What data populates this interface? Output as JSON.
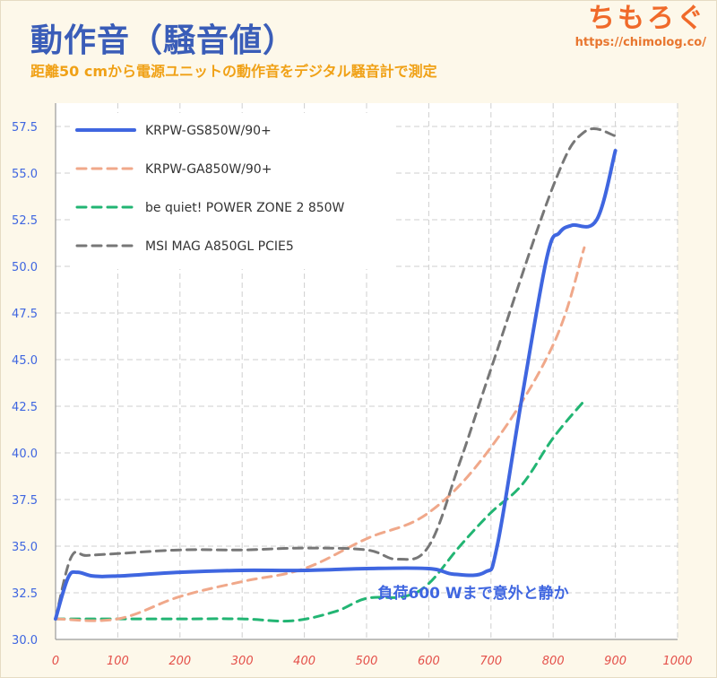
{
  "header": {
    "title": "動作音（騒音値）",
    "subtitle": "距離50 cmから電源ユニットの動作音をデジタル騒音計で測定"
  },
  "brand": {
    "name": "ちもろぐ",
    "url": "https://chimolog.co/"
  },
  "chart_data": {
    "type": "line",
    "title": "動作音（騒音値）",
    "subtitle": "距離50 cmから電源ユニットの動作音をデジタル騒音計で測定",
    "xlabel": "",
    "ylabel": "",
    "xlim": [
      0,
      1000
    ],
    "ylim": [
      30.0,
      58.75
    ],
    "x_ticks": [
      0,
      100,
      200,
      300,
      400,
      500,
      600,
      700,
      800,
      900,
      1000
    ],
    "x_tick_labels": [
      "0",
      "100",
      "200",
      "300",
      "400",
      "500",
      "600",
      "700",
      "800",
      "900",
      "1000"
    ],
    "y_ticks": [
      30.0,
      32.5,
      35.0,
      37.5,
      40.0,
      42.5,
      45.0,
      47.5,
      50.0,
      52.5,
      55.0,
      57.5
    ],
    "y_tick_labels": [
      "30.0",
      "32.5",
      "35.0",
      "37.5",
      "40.0",
      "42.5",
      "45.0",
      "47.5",
      "50.0",
      "52.5",
      "55.0",
      "57.5"
    ],
    "grid": true,
    "legend_position": "top-left",
    "series": [
      {
        "name": "KRPW-GS850W/90+",
        "color": "#3f66e0",
        "dash": "solid",
        "x": [
          0,
          20,
          35,
          60,
          100,
          200,
          300,
          400,
          500,
          600,
          640,
          690,
          710,
          750,
          790,
          810,
          830,
          870,
          900
        ],
        "y": [
          31.1,
          33.3,
          33.6,
          33.4,
          33.4,
          33.6,
          33.7,
          33.7,
          33.8,
          33.8,
          33.5,
          33.6,
          35.0,
          43.0,
          50.5,
          51.8,
          52.2,
          52.5,
          56.2
        ]
      },
      {
        "name": "KRPW-GA850W/90+",
        "color": "#f0a88a",
        "dash": "dashed",
        "x": [
          0,
          100,
          200,
          300,
          400,
          500,
          600,
          700,
          800,
          850
        ],
        "y": [
          31.1,
          31.1,
          32.3,
          33.1,
          33.8,
          35.4,
          36.8,
          40.3,
          45.8,
          51.0
        ]
      },
      {
        "name": "be quiet! POWER ZONE 2 850W",
        "color": "#22b573",
        "dash": "dashed",
        "x": [
          0,
          100,
          200,
          300,
          380,
          450,
          500,
          560,
          600,
          650,
          700,
          750,
          800,
          850
        ],
        "y": [
          31.1,
          31.1,
          31.1,
          31.1,
          31.0,
          31.5,
          32.2,
          32.3,
          33.0,
          35.0,
          36.8,
          38.3,
          40.8,
          42.8
        ]
      },
      {
        "name": "MSI MAG A850GL PCIE5",
        "color": "#777777",
        "dash": "dashed",
        "x": [
          0,
          25,
          50,
          100,
          200,
          300,
          400,
          500,
          550,
          600,
          650,
          700,
          800,
          850,
          900
        ],
        "y": [
          31.1,
          34.4,
          34.5,
          34.6,
          34.8,
          34.8,
          34.9,
          34.8,
          34.3,
          35.0,
          39.5,
          44.5,
          54.3,
          57.2,
          57.0
        ]
      }
    ],
    "annotations": [
      {
        "text": "負荷600 Wまで意外と静か",
        "x": 518,
        "y": 32.5,
        "color": "#3f66e0"
      }
    ]
  }
}
